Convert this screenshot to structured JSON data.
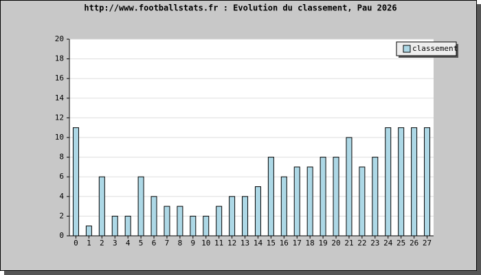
{
  "chart_data": {
    "type": "bar",
    "title": "http://www.footballstats.fr : Evolution du classement, Pau 2026",
    "categories": [
      "0",
      "1",
      "2",
      "3",
      "4",
      "5",
      "6",
      "7",
      "8",
      "9",
      "10",
      "11",
      "12",
      "13",
      "14",
      "15",
      "16",
      "17",
      "18",
      "19",
      "20",
      "21",
      "22",
      "23",
      "24",
      "25",
      "26",
      "27"
    ],
    "series": [
      {
        "name": "classement",
        "color": "#add8e6",
        "values": [
          11,
          1,
          6,
          2,
          2,
          6,
          4,
          3,
          3,
          2,
          2,
          3,
          4,
          4,
          5,
          8,
          6,
          7,
          7,
          8,
          8,
          10,
          7,
          8,
          11,
          11,
          11,
          11
        ]
      }
    ],
    "ylim": [
      0,
      20
    ],
    "yticks": [
      0,
      2,
      4,
      6,
      8,
      10,
      12,
      14,
      16,
      18,
      20
    ],
    "grid": true,
    "legend": "top-right"
  }
}
